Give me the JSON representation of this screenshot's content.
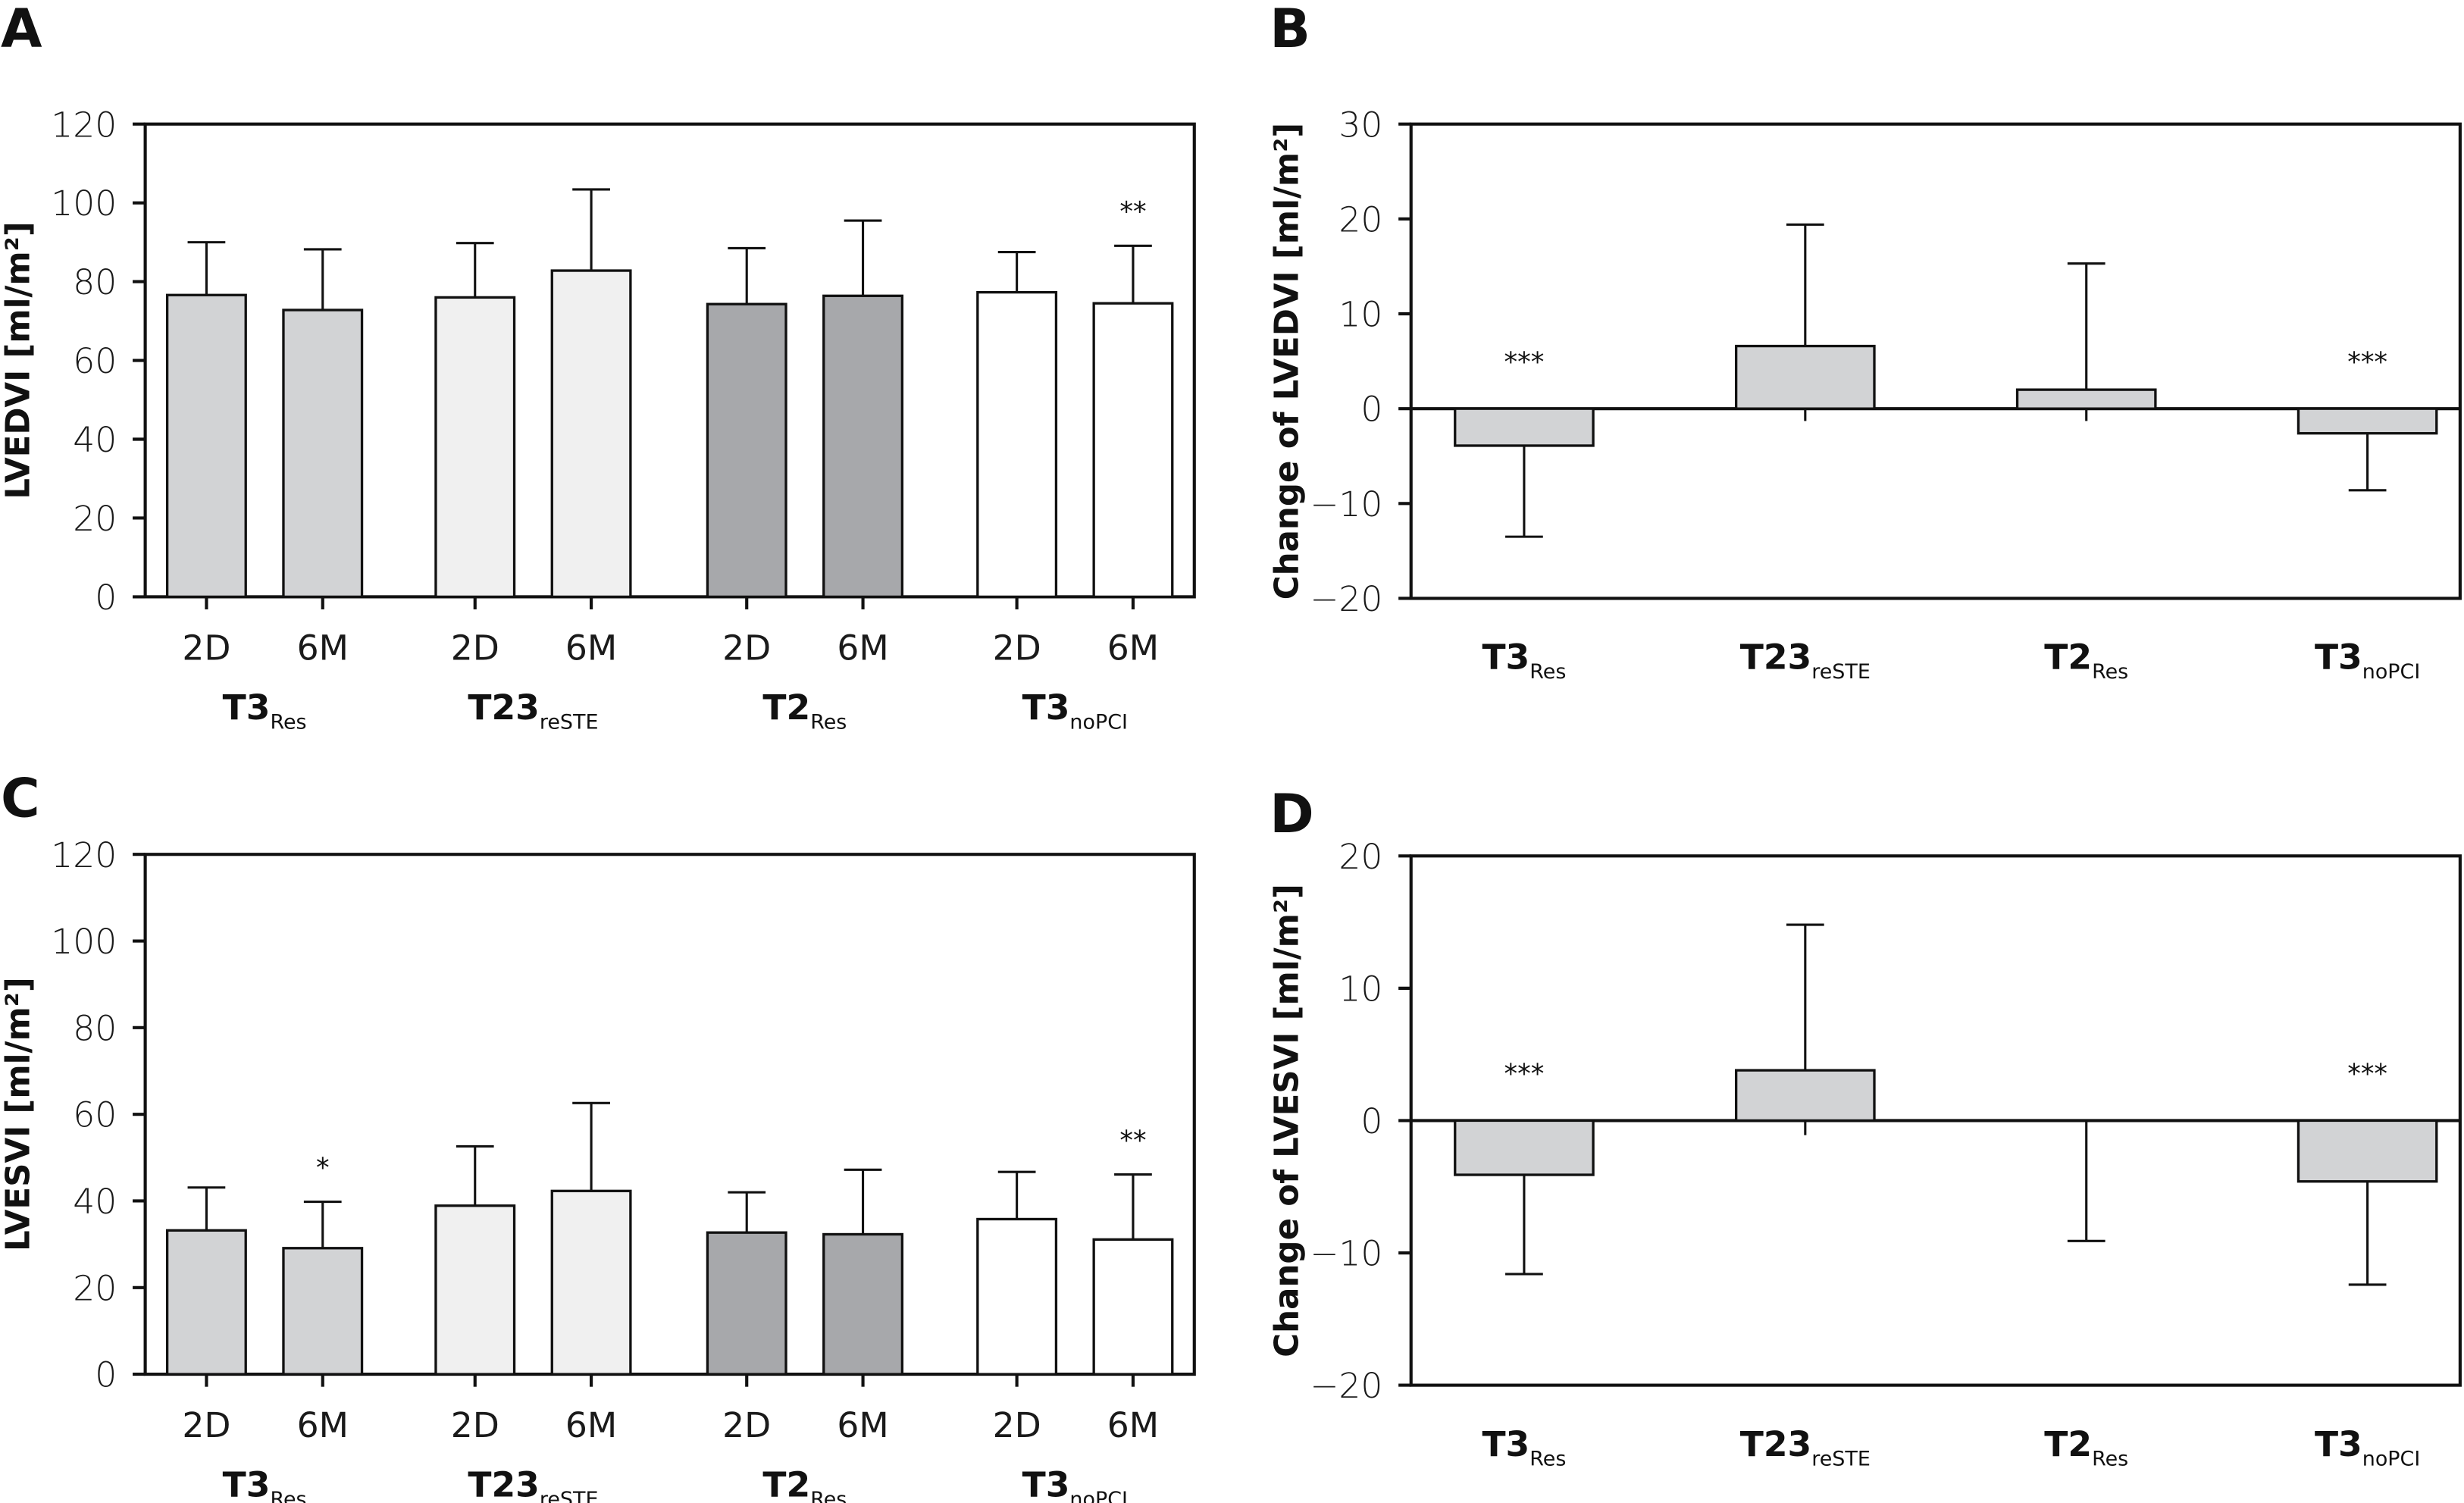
{
  "colors": {
    "T3Res": "#d2d3d5",
    "T23reSTE": "#f0f0f0",
    "T2Res": "#a7a8ab",
    "T3noPCI": "#ffffff",
    "change": "#d2d3d5"
  },
  "chart_data": [
    {
      "panel": "A",
      "type": "bar",
      "title": "",
      "xlabel": "",
      "ylabel": "LVEDVI [ml/m²]",
      "ylim": [
        0,
        120
      ],
      "yticks": [
        0,
        20,
        40,
        60,
        80,
        100,
        120
      ],
      "grid": false,
      "groups": [
        {
          "name": "T3",
          "sub": "Res",
          "key": "T3Res",
          "bars": [
            {
              "label": "2D",
              "value": 76.6,
              "error_upper": 90.0,
              "sig": ""
            },
            {
              "label": "6M",
              "value": 72.8,
              "error_upper": 88.2,
              "sig": ""
            }
          ]
        },
        {
          "name": "T23",
          "sub": "reSTE",
          "key": "T23reSTE",
          "bars": [
            {
              "label": "2D",
              "value": 76.0,
              "error_upper": 89.8,
              "sig": ""
            },
            {
              "label": "6M",
              "value": 82.8,
              "error_upper": 103.4,
              "sig": ""
            }
          ]
        },
        {
          "name": "T2",
          "sub": "Res",
          "key": "T2Res",
          "bars": [
            {
              "label": "2D",
              "value": 74.3,
              "error_upper": 88.5,
              "sig": ""
            },
            {
              "label": "6M",
              "value": 76.4,
              "error_upper": 95.5,
              "sig": ""
            }
          ]
        },
        {
          "name": "T3",
          "sub": "noPCI",
          "key": "T3noPCI",
          "bars": [
            {
              "label": "2D",
              "value": 77.3,
              "error_upper": 87.5,
              "sig": ""
            },
            {
              "label": "6M",
              "value": 74.5,
              "error_upper": 89.1,
              "sig": "**"
            }
          ]
        }
      ]
    },
    {
      "panel": "B",
      "type": "bar",
      "title": "",
      "xlabel": "",
      "ylabel": "Change of LVEDVI [ml/m²]",
      "ylim": [
        -20,
        30
      ],
      "yticks": [
        -20,
        -10,
        0,
        10,
        20,
        30
      ],
      "grid": false,
      "categories": [
        {
          "name": "T3",
          "sub": "Res"
        },
        {
          "name": "T23",
          "sub": "reSTE"
        },
        {
          "name": "T2",
          "sub": "Res"
        },
        {
          "name": "T3",
          "sub": "noPCI"
        }
      ],
      "values": [
        -3.9,
        6.6,
        2.0,
        -2.6
      ],
      "error_ends": [
        -13.5,
        19.4,
        15.3,
        -8.6
      ],
      "opposite_caps": [
        null,
        -1.3,
        -1.3,
        null
      ],
      "sig": [
        "***",
        "",
        "",
        "***"
      ]
    },
    {
      "panel": "C",
      "type": "bar",
      "title": "",
      "xlabel": "",
      "ylabel": "LVESVI [ml/m²]",
      "ylim": [
        0,
        120
      ],
      "yticks": [
        0,
        20,
        40,
        60,
        80,
        100,
        120
      ],
      "grid": false,
      "groups": [
        {
          "name": "T3",
          "sub": "Res",
          "key": "T3Res",
          "bars": [
            {
              "label": "2D",
              "value": 33.2,
              "error_upper": 43.1,
              "sig": ""
            },
            {
              "label": "6M",
              "value": 29.1,
              "error_upper": 39.8,
              "sig": "*"
            }
          ]
        },
        {
          "name": "T23",
          "sub": "reSTE",
          "key": "T23reSTE",
          "bars": [
            {
              "label": "2D",
              "value": 38.9,
              "error_upper": 52.6,
              "sig": ""
            },
            {
              "label": "6M",
              "value": 42.3,
              "error_upper": 62.6,
              "sig": ""
            }
          ]
        },
        {
          "name": "T2",
          "sub": "Res",
          "key": "T2Res",
          "bars": [
            {
              "label": "2D",
              "value": 32.7,
              "error_upper": 42.0,
              "sig": ""
            },
            {
              "label": "6M",
              "value": 32.3,
              "error_upper": 47.2,
              "sig": ""
            }
          ]
        },
        {
          "name": "T3",
          "sub": "noPCI",
          "key": "T3noPCI",
          "bars": [
            {
              "label": "2D",
              "value": 35.8,
              "error_upper": 46.7,
              "sig": ""
            },
            {
              "label": "6M",
              "value": 31.1,
              "error_upper": 46.1,
              "sig": "**"
            }
          ]
        }
      ]
    },
    {
      "panel": "D",
      "type": "bar",
      "title": "",
      "xlabel": "",
      "ylabel": "Change of LVESVI [ml/m²]",
      "ylim": [
        -20,
        20
      ],
      "yticks": [
        -20,
        -10,
        0,
        10,
        20
      ],
      "grid": false,
      "categories": [
        {
          "name": "T3",
          "sub": "Res"
        },
        {
          "name": "T23",
          "sub": "reSTE"
        },
        {
          "name": "T2",
          "sub": "Res"
        },
        {
          "name": "T3",
          "sub": "noPCI"
        }
      ],
      "values": [
        -4.1,
        3.8,
        0.0,
        -4.6
      ],
      "error_ends": [
        -11.6,
        14.8,
        -9.1,
        -12.4
      ],
      "opposite_caps": [
        null,
        -1.1,
        null,
        null
      ],
      "sig": [
        "***",
        "",
        "",
        "***"
      ]
    }
  ]
}
